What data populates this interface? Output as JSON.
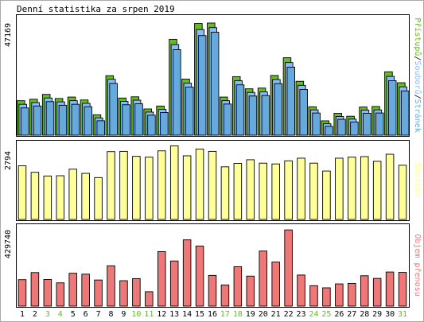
{
  "title": "Denní statistika za srpen 2019",
  "x_labels": [
    "1",
    "2",
    "3",
    "4",
    "5",
    "6",
    "7",
    "8",
    "9",
    "10",
    "11",
    "12",
    "13",
    "14",
    "15",
    "16",
    "17",
    "18",
    "19",
    "20",
    "21",
    "22",
    "23",
    "24",
    "25",
    "26",
    "27",
    "28",
    "29",
    "30",
    "31"
  ],
  "weekend_days": [
    "3",
    "4",
    "10",
    "11",
    "17",
    "18",
    "24",
    "25",
    "31"
  ],
  "colors": {
    "outer_frame": "#aaaaaa",
    "panel_bg": "#ffffff",
    "panel_border": "#000000",
    "bar_outline": "#000000",
    "weekday_label": "#000000",
    "weekend_label": "#66bb22",
    "pristupu": "#66bb22",
    "souboru": "#88bbff",
    "stranek": "#66aadd",
    "navstev": "#ffff99",
    "objem": "#ee7777"
  },
  "chart_data": [
    {
      "type": "bar",
      "panel": "top",
      "ymax_label": "47169",
      "ylim": [
        0,
        47169
      ],
      "categories": [
        "1",
        "2",
        "3",
        "4",
        "5",
        "6",
        "7",
        "8",
        "9",
        "10",
        "11",
        "12",
        "13",
        "14",
        "15",
        "16",
        "17",
        "18",
        "19",
        "20",
        "21",
        "22",
        "23",
        "24",
        "25",
        "26",
        "27",
        "28",
        "29",
        "30",
        "31"
      ],
      "legend": [
        {
          "text": "Přístupů",
          "color": "#66bb22"
        },
        {
          "text": "/",
          "color": "#000000"
        },
        {
          "text": "Souborů",
          "color": "#88bbff"
        },
        {
          "text": "/",
          "color": "#000000"
        },
        {
          "text": "Stránek",
          "color": "#66aadd"
        }
      ],
      "series": [
        {
          "name": "Přístupů",
          "values": [
            14200,
            14800,
            16800,
            15100,
            15700,
            14500,
            8400,
            24500,
            15300,
            15800,
            10800,
            12000,
            39500,
            23100,
            46000,
            46200,
            15700,
            24100,
            19100,
            19400,
            24600,
            31900,
            22200,
            11700,
            5900,
            9000,
            7800,
            11600,
            11800,
            26100,
            21600
          ]
        },
        {
          "name": "Souborů",
          "values": [
            13500,
            14200,
            16100,
            14500,
            15000,
            13900,
            7900,
            23800,
            14700,
            15200,
            10300,
            11400,
            38100,
            22200,
            44300,
            45100,
            15000,
            23200,
            18400,
            18600,
            23700,
            30700,
            21300,
            11200,
            5500,
            8500,
            7400,
            11100,
            11200,
            25000,
            20700
          ]
        },
        {
          "name": "Stránek",
          "values": [
            12800,
            13600,
            15400,
            13900,
            14300,
            13300,
            7500,
            22900,
            14100,
            14500,
            9800,
            10900,
            36800,
            21400,
            42600,
            44000,
            14400,
            22300,
            17700,
            17900,
            22800,
            29600,
            20400,
            10700,
            5200,
            8100,
            7000,
            10600,
            10700,
            24000,
            19800
          ]
        }
      ]
    },
    {
      "type": "bar",
      "panel": "middle",
      "ymax_label": "2794",
      "ylim": [
        0,
        2794
      ],
      "categories": [
        "1",
        "2",
        "3",
        "4",
        "5",
        "6",
        "7",
        "8",
        "9",
        "10",
        "11",
        "12",
        "13",
        "14",
        "15",
        "16",
        "17",
        "18",
        "19",
        "20",
        "21",
        "22",
        "23",
        "24",
        "25",
        "26",
        "27",
        "28",
        "29",
        "30",
        "31"
      ],
      "legend": [
        {
          "text": "Návštěv",
          "color": "#ffff99"
        }
      ],
      "series": [
        {
          "name": "Návštěv",
          "values": [
            2050,
            1800,
            1660,
            1670,
            1920,
            1760,
            1600,
            2590,
            2600,
            2410,
            2380,
            2620,
            2810,
            2430,
            2690,
            2600,
            2010,
            2140,
            2280,
            2150,
            2120,
            2240,
            2340,
            2150,
            1850,
            2340,
            2380,
            2400,
            2220,
            2490,
            2070
          ]
        }
      ]
    },
    {
      "type": "bar",
      "panel": "bottom",
      "ymax_label": "429740",
      "ylim": [
        0,
        429740
      ],
      "categories": [
        "1",
        "2",
        "3",
        "4",
        "5",
        "6",
        "7",
        "8",
        "9",
        "10",
        "11",
        "12",
        "13",
        "14",
        "15",
        "16",
        "17",
        "18",
        "19",
        "20",
        "21",
        "22",
        "23",
        "24",
        "25",
        "26",
        "27",
        "28",
        "29",
        "30",
        "31"
      ],
      "legend": [
        {
          "text": "Objem přenosu",
          "color": "#ee7777"
        }
      ],
      "series": [
        {
          "name": "Objem přenosu",
          "values": [
            149000,
            189000,
            150000,
            131000,
            185000,
            180000,
            147000,
            227000,
            143000,
            155000,
            81000,
            307000,
            254000,
            373000,
            338000,
            173000,
            119000,
            222000,
            169000,
            310000,
            248000,
            429000,
            175000,
            115000,
            103000,
            125000,
            128000,
            171000,
            156000,
            192000,
            190000
          ]
        }
      ]
    }
  ]
}
